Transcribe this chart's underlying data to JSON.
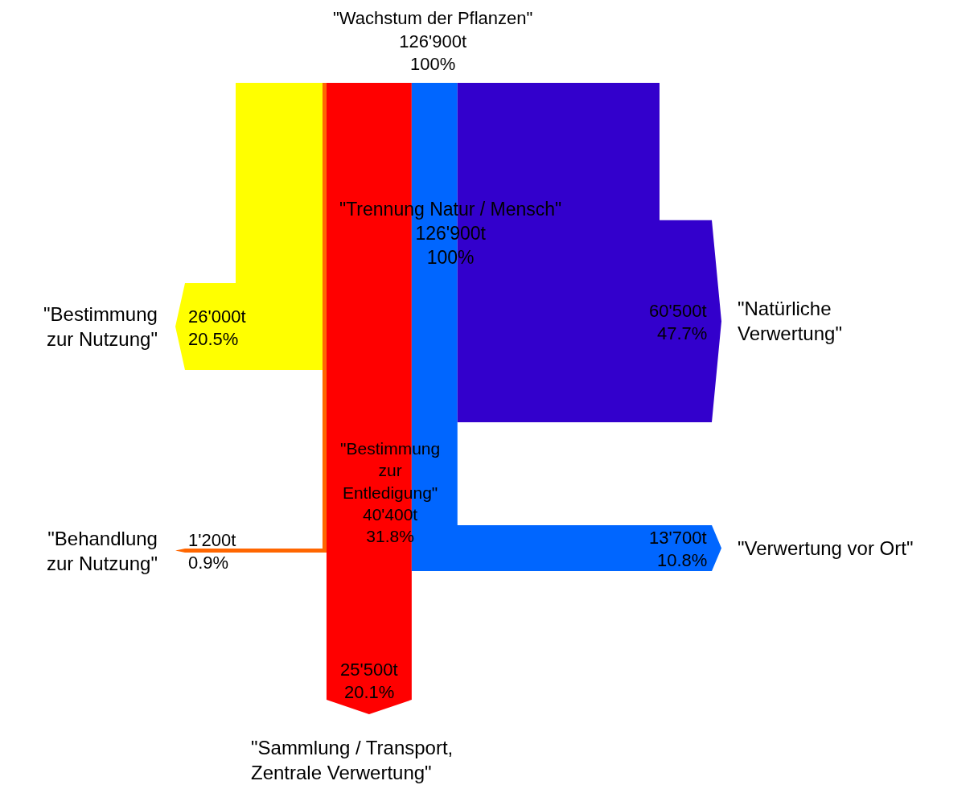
{
  "chart_data": {
    "type": "other",
    "title": "\"Wachstum der Pflanzen\"\n126'900t\n100%",
    "categories": [
      "\"Bestimmung\nzur Nutzung\"",
      "\"Behandlung\nzur Nutzung\"",
      "\"Sammlung / Transport,\nZentrale Verwertung\"",
      "\"Verwertung vor Ort\"",
      "\"Natürliche\nVerwertung\""
    ],
    "values": [
      26000,
      1200,
      25500,
      13700,
      60500
    ],
    "value_labels": [
      "26'000t",
      "1'200t",
      "25'500t",
      "13'700t",
      "60'500t"
    ],
    "colors": [
      "#ffff00",
      "#ff6600",
      "#ff0000",
      "#0066ff",
      "#3300cc"
    ],
    "annotations": [
      "\"Trennung Natur / Mensch\"\n126'900t\n100%",
      "\"Bestimmung\nzur\nEntledigung\"\n40'400t\n31.8%",
      "20.5%",
      "0.9%",
      "20.1%",
      "10.8%",
      "47.7%"
    ]
  }
}
